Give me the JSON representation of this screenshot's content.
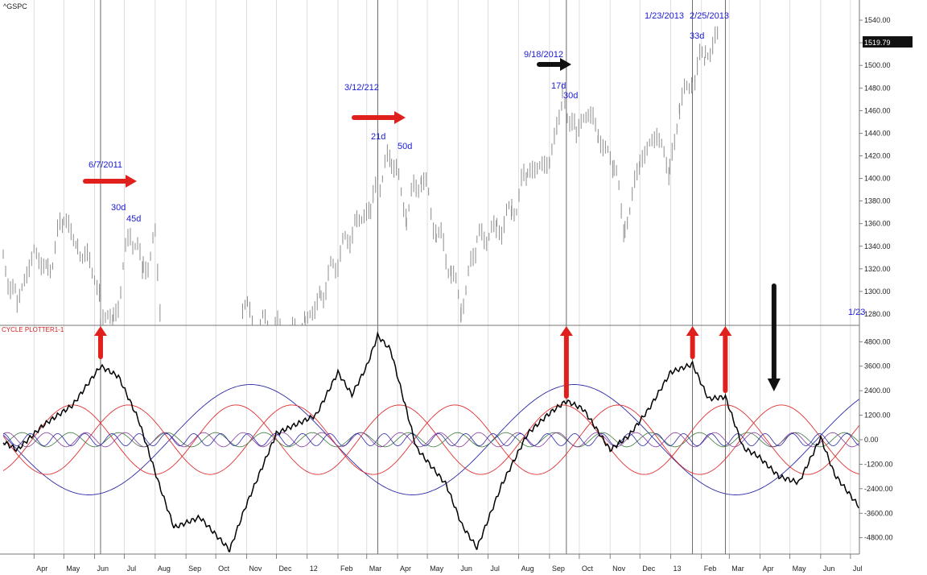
{
  "symbol": "^GSPC",
  "last_price": "1519.79",
  "indicator_label": "CYCLE PLOTTER1-1",
  "colors": {
    "annotation": "#1a1ad6",
    "arrow_red": "#e0201c",
    "arrow_black": "#111111",
    "price": "#8c8c8c",
    "grid": "#d6d6d6",
    "cycle_red": "#e03030",
    "cycle_blue": "#2a2aa8",
    "cycle_green": "#3c7a3c",
    "composite": "#000000"
  },
  "chart_data": [
    {
      "type": "bar",
      "title": "^GSPC",
      "y_axis_labels": [
        "1540.00",
        "1520.00",
        "1500.00",
        "1480.00",
        "1460.00",
        "1440.00",
        "1420.00",
        "1400.00",
        "1380.00",
        "1360.00",
        "1340.00",
        "1320.00",
        "1300.00",
        "1280.00"
      ],
      "ylim": [
        1270,
        1555
      ],
      "x_tick_labels": [
        "Apr",
        "May",
        "Jun",
        "Jul",
        "Aug",
        "Sep",
        "Oct",
        "Nov",
        "Dec",
        "12",
        "Feb",
        "Mar",
        "Apr",
        "May",
        "Jun",
        "Jul",
        "Aug",
        "Sep",
        "Oct",
        "Nov",
        "Dec",
        "13",
        "Feb",
        "Mar",
        "Apr",
        "May",
        "Jun",
        "Jul"
      ],
      "price_path": [
        [
          "2011-03-01",
          1325
        ],
        [
          "2011-03-15",
          1290
        ],
        [
          "2011-04-01",
          1335
        ],
        [
          "2011-04-15",
          1318
        ],
        [
          "2011-05-01",
          1365
        ],
        [
          "2011-05-15",
          1340
        ],
        [
          "2011-06-01",
          1318
        ],
        [
          "2011-06-07",
          1285
        ],
        [
          "2011-06-20",
          1270
        ],
        [
          "2011-07-07",
          1355
        ],
        [
          "2011-07-20",
          1318
        ],
        [
          "2011-08-01",
          1345
        ],
        [
          "2011-08-08",
          1268
        ],
        [
          "2011-10-28",
          1290
        ],
        [
          "2011-11-10",
          1270
        ],
        [
          "2011-11-25",
          1270
        ],
        [
          "2011-12-10",
          1262
        ],
        [
          "2011-12-30",
          1270
        ],
        [
          "2012-01-15",
          1298
        ],
        [
          "2012-02-01",
          1330
        ],
        [
          "2012-02-20",
          1362
        ],
        [
          "2012-03-05",
          1372
        ],
        [
          "2012-03-12",
          1395
        ],
        [
          "2012-03-26",
          1420
        ],
        [
          "2012-04-10",
          1370
        ],
        [
          "2012-04-25",
          1405
        ],
        [
          "2012-05-10",
          1355
        ],
        [
          "2012-05-25",
          1320
        ],
        [
          "2012-06-04",
          1285
        ],
        [
          "2012-06-20",
          1345
        ],
        [
          "2012-07-10",
          1355
        ],
        [
          "2012-07-25",
          1370
        ],
        [
          "2012-08-10",
          1405
        ],
        [
          "2012-09-01",
          1415
        ],
        [
          "2012-09-14",
          1470
        ],
        [
          "2012-09-28",
          1440
        ],
        [
          "2012-10-10",
          1460
        ],
        [
          "2012-10-20",
          1438
        ],
        [
          "2012-11-05",
          1410
        ],
        [
          "2012-11-16",
          1355
        ],
        [
          "2012-12-01",
          1415
        ],
        [
          "2012-12-18",
          1440
        ],
        [
          "2012-12-31",
          1405
        ],
        [
          "2013-01-10",
          1465
        ],
        [
          "2013-01-23",
          1490
        ],
        [
          "2013-02-05",
          1510
        ],
        [
          "2013-02-19",
          1525
        ]
      ],
      "annotations": [
        {
          "text": "6/7/2011",
          "date": "2011-06-07"
        },
        {
          "text": "30d"
        },
        {
          "text": "45d"
        },
        {
          "text": "3/12/212",
          "date": "2012-03-12"
        },
        {
          "text": "21d"
        },
        {
          "text": "50d"
        },
        {
          "text": "9/18/2012",
          "date": "2012-09-18"
        },
        {
          "text": "17d"
        },
        {
          "text": "30d"
        },
        {
          "text": "1/23/2013",
          "date": "2013-01-23"
        },
        {
          "text": "2/25/2013",
          "date": "2013-02-25"
        },
        {
          "text": "33d"
        },
        {
          "text": "1/23"
        }
      ]
    },
    {
      "type": "line",
      "title": "CYCLE PLOTTER1-1",
      "y_axis_labels": [
        "4800.00",
        "3600.00",
        "2400.00",
        "1200.00",
        "0.00",
        "-1200.00",
        "-2400.00",
        "-3600.00",
        "-4800.00"
      ],
      "ylim": [
        -5600,
        5600
      ],
      "series": [
        {
          "cycle": "long blue",
          "amplitude": 2700,
          "period_months": 10.7,
          "peak_date": "2011-11-05",
          "color": "blue"
        },
        {
          "cycle": "red A",
          "amplitude": 1700,
          "period_months": 5.4,
          "peak_date": "2011-07-05",
          "color": "red"
        },
        {
          "cycle": "red B",
          "amplitude": 1700,
          "period_months": 5.4,
          "peak_date": "2011-05-10",
          "color": "red"
        },
        {
          "cycle": "small green",
          "amplitude": 350,
          "period_months": 1.6,
          "peak_date": "2011-03-20",
          "color": "green"
        },
        {
          "cycle": "small purple",
          "amplitude": 350,
          "period_months": 1.3,
          "peak_date": "2011-03-05",
          "color": "purple"
        },
        {
          "cycle": "small blue",
          "amplitude": 300,
          "period_months": 0.9,
          "peak_date": "2011-03-01",
          "color": "blue"
        }
      ],
      "composite": [
        [
          "2011-03-01",
          -100
        ],
        [
          "2011-03-15",
          -500
        ],
        [
          "2011-04-10",
          700
        ],
        [
          "2011-05-10",
          1700
        ],
        [
          "2011-06-07",
          3600
        ],
        [
          "2011-06-25",
          3100
        ],
        [
          "2011-07-15",
          1000
        ],
        [
          "2011-08-05",
          -2200
        ],
        [
          "2011-08-20",
          -4300
        ],
        [
          "2011-09-15",
          -3800
        ],
        [
          "2011-10-15",
          -5400
        ],
        [
          "2011-10-30",
          -3400
        ],
        [
          "2011-12-01",
          300
        ],
        [
          "2012-01-10",
          1200
        ],
        [
          "2012-02-01",
          3300
        ],
        [
          "2012-02-15",
          2200
        ],
        [
          "2012-03-01",
          3600
        ],
        [
          "2012-03-12",
          5100
        ],
        [
          "2012-03-25",
          4400
        ],
        [
          "2012-04-20",
          -400
        ],
        [
          "2012-05-20",
          -2200
        ],
        [
          "2012-06-05",
          -4200
        ],
        [
          "2012-06-20",
          -5300
        ],
        [
          "2012-07-15",
          -2200
        ],
        [
          "2012-08-10",
          300
        ],
        [
          "2012-09-01",
          1300
        ],
        [
          "2012-09-18",
          1900
        ],
        [
          "2012-10-05",
          1500
        ],
        [
          "2012-11-01",
          -500
        ],
        [
          "2012-11-20",
          200
        ],
        [
          "2012-12-10",
          1500
        ],
        [
          "2013-01-01",
          3300
        ],
        [
          "2013-01-23",
          3700
        ],
        [
          "2013-02-08",
          2000
        ],
        [
          "2013-02-25",
          2100
        ],
        [
          "2013-03-15",
          -400
        ],
        [
          "2013-03-30",
          -800
        ],
        [
          "2013-04-20",
          -1800
        ],
        [
          "2013-05-10",
          -2100
        ],
        [
          "2013-06-01",
          100
        ],
        [
          "2013-06-15",
          -1700
        ],
        [
          "2013-07-10",
          -3300
        ]
      ],
      "annotations": [
        {
          "text": "up arrow",
          "date": "2011-06-07",
          "color": "red"
        },
        {
          "text": "up arrow",
          "date": "2012-03-12",
          "color": "red"
        },
        {
          "text": "up arrow",
          "date": "2012-09-18",
          "color": "red"
        },
        {
          "text": "up arrow",
          "date": "2013-01-23",
          "color": "red"
        },
        {
          "text": "up arrow",
          "date": "2013-02-25",
          "color": "red"
        },
        {
          "text": "down arrow",
          "date": "2013-04-15",
          "color": "black"
        }
      ]
    }
  ]
}
